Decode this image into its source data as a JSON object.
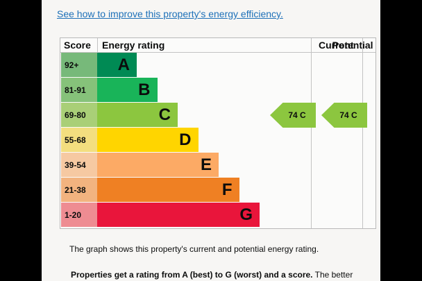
{
  "link_text": "See how to improve this property's energy efficiency.",
  "table": {
    "headers": {
      "score": "Score",
      "rating": "Energy rating",
      "current": "Current",
      "potential": "Potential"
    },
    "rows": [
      {
        "range": "92+",
        "band": "A",
        "color": "#008a54",
        "score_bg": "#77b97a"
      },
      {
        "range": "81-91",
        "band": "B",
        "color": "#19b459",
        "score_bg": "#86c27a"
      },
      {
        "range": "69-80",
        "band": "C",
        "color": "#8cc63f",
        "score_bg": "#a9cf77"
      },
      {
        "range": "55-68",
        "band": "D",
        "color": "#ffd500",
        "score_bg": "#f3de7f"
      },
      {
        "range": "39-54",
        "band": "E",
        "color": "#fcaa65",
        "score_bg": "#f6c9a2"
      },
      {
        "range": "21-38",
        "band": "F",
        "color": "#ef8023",
        "score_bg": "#f2b37f"
      },
      {
        "range": "1-20",
        "band": "G",
        "color": "#e9153b",
        "score_bg": "#ee8c92"
      }
    ],
    "current": {
      "label": "74 C",
      "band": "C",
      "color": "#8cc63f"
    },
    "potential": {
      "label": "74 C",
      "band": "C",
      "color": "#8cc63f"
    }
  },
  "note1": "The graph shows this property's current and potential energy rating.",
  "note2_bold": "Properties get a rating from A (best) to G (worst) and a score.",
  "note2_rest": " The better"
}
